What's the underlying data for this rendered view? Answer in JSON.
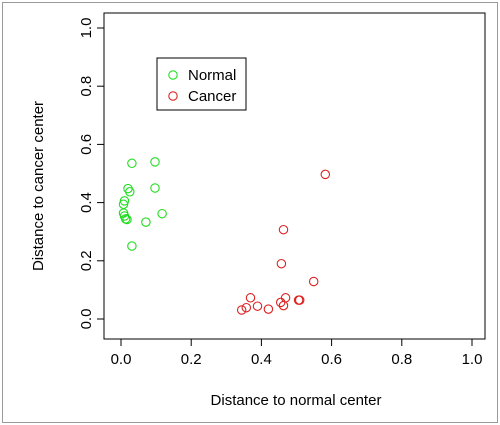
{
  "chart_data": {
    "type": "scatter",
    "xlabel": "Distance to normal center",
    "ylabel": "Distance to cancer center",
    "xlim": [
      0,
      1
    ],
    "ylim": [
      0,
      1
    ],
    "xticks": [
      "0.0",
      "0.2",
      "0.4",
      "0.6",
      "0.8",
      "1.0"
    ],
    "yticks": [
      "0.0",
      "0.2",
      "0.4",
      "0.6",
      "0.8",
      "1.0"
    ],
    "grid": false,
    "legend_position": "top-left",
    "series": [
      {
        "name": "Normal",
        "color": "#22dd22",
        "marker": "open-circle",
        "points": [
          [
            0.031,
            0.535
          ],
          [
            0.097,
            0.54
          ],
          [
            0.02,
            0.448
          ],
          [
            0.097,
            0.45
          ],
          [
            0.025,
            0.437
          ],
          [
            0.01,
            0.406
          ],
          [
            0.007,
            0.394
          ],
          [
            0.007,
            0.364
          ],
          [
            0.01,
            0.354
          ],
          [
            0.013,
            0.344
          ],
          [
            0.017,
            0.342
          ],
          [
            0.117,
            0.362
          ],
          [
            0.071,
            0.333
          ],
          [
            0.031,
            0.251
          ]
        ]
      },
      {
        "name": "Cancer",
        "color": "#dd2222",
        "marker": "open-circle",
        "points": [
          [
            0.582,
            0.497
          ],
          [
            0.463,
            0.307
          ],
          [
            0.457,
            0.19
          ],
          [
            0.549,
            0.129
          ],
          [
            0.369,
            0.073
          ],
          [
            0.469,
            0.073
          ],
          [
            0.455,
            0.057
          ],
          [
            0.506,
            0.065
          ],
          [
            0.509,
            0.065
          ],
          [
            0.389,
            0.044
          ],
          [
            0.463,
            0.046
          ],
          [
            0.357,
            0.039
          ],
          [
            0.42,
            0.034
          ],
          [
            0.344,
            0.031
          ]
        ]
      }
    ]
  }
}
